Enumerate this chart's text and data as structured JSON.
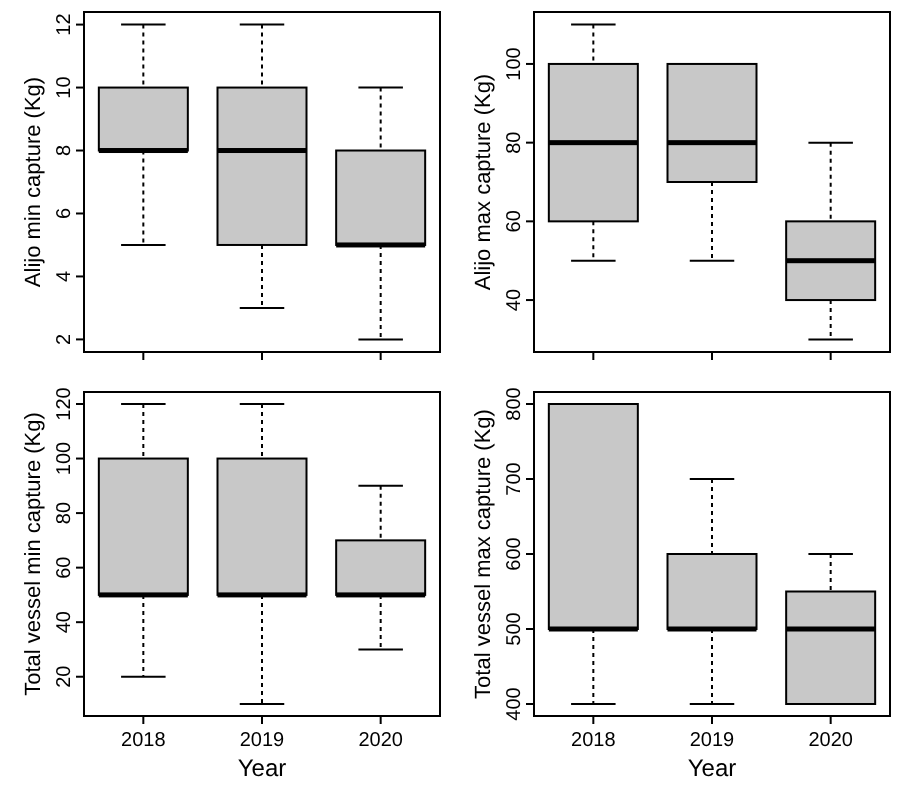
{
  "chart_data": [
    {
      "type": "box",
      "ylabel": "Alijo min capture (Kg)",
      "categories": [
        "2018",
        "2019",
        "2020"
      ],
      "ylim": [
        1.6,
        12.4
      ],
      "yticks": [
        2,
        4,
        6,
        8,
        10,
        12
      ],
      "tick_labels": "y",
      "series": [
        {
          "color": "#c8c8c8",
          "boxes": [
            {
              "low": 5,
              "q1": 8,
              "median": 8,
              "q3": 10,
              "high": 12
            },
            {
              "low": 3,
              "q1": 5,
              "median": 8,
              "q3": 10,
              "high": 12
            },
            {
              "low": 2,
              "q1": 5,
              "median": 5,
              "q3": 8,
              "high": 10
            }
          ]
        }
      ]
    },
    {
      "type": "box",
      "ylabel": "Alijo max capture (Kg)",
      "categories": [
        "2018",
        "2019",
        "2020"
      ],
      "ylim": [
        26.8,
        113.2
      ],
      "yticks": [
        40,
        60,
        80,
        100
      ],
      "tick_labels": "y",
      "series": [
        {
          "color": "#c8c8c8",
          "boxes": [
            {
              "low": 50,
              "q1": 60,
              "median": 80,
              "q3": 100,
              "high": 110
            },
            {
              "low": 50,
              "q1": 70,
              "median": 80,
              "q3": 100,
              "high": 100
            },
            {
              "low": 30,
              "q1": 40,
              "median": 50,
              "q3": 60,
              "high": 80
            }
          ]
        }
      ]
    },
    {
      "type": "box",
      "ylabel": "Total vessel min capture (Kg)",
      "xlabel": "Year",
      "categories": [
        "2018",
        "2019",
        "2020"
      ],
      "ylim": [
        5.6,
        124.4
      ],
      "yticks": [
        20,
        40,
        60,
        80,
        100,
        120
      ],
      "series": [
        {
          "color": "#c8c8c8",
          "boxes": [
            {
              "low": 20,
              "q1": 50,
              "median": 50,
              "q3": 100,
              "high": 120
            },
            {
              "low": 10,
              "q1": 50,
              "median": 50,
              "q3": 100,
              "high": 120
            },
            {
              "low": 30,
              "q1": 50,
              "median": 50,
              "q3": 70,
              "high": 90
            }
          ]
        }
      ]
    },
    {
      "type": "box",
      "ylabel": "Total vessel max capture (Kg)",
      "xlabel": "Year",
      "categories": [
        "2018",
        "2019",
        "2020"
      ],
      "ylim": [
        384,
        816
      ],
      "yticks": [
        400,
        500,
        600,
        700,
        800
      ],
      "series": [
        {
          "color": "#c8c8c8",
          "boxes": [
            {
              "low": 400,
              "q1": 500,
              "median": 500,
              "q3": 800,
              "high": 800
            },
            {
              "low": 400,
              "q1": 500,
              "median": 500,
              "q3": 600,
              "high": 700
            },
            {
              "low": 400,
              "q1": 400,
              "median": 500,
              "q3": 550,
              "high": 600
            }
          ]
        }
      ]
    }
  ]
}
